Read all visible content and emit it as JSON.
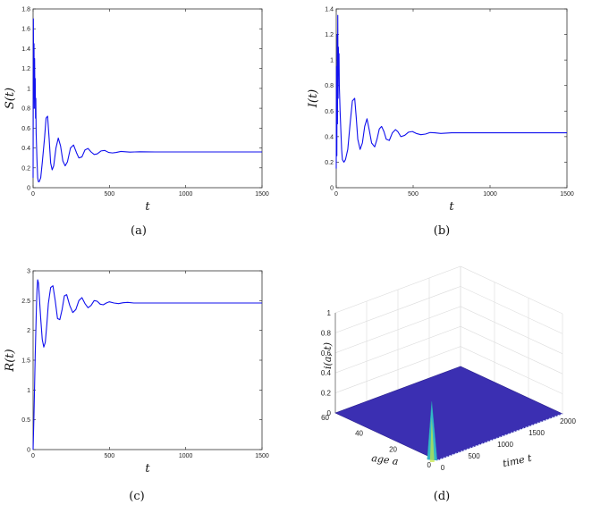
{
  "chart_data": [
    {
      "type": "line",
      "panel": "(a)",
      "caption": "(a)",
      "xlabel": "t",
      "ylabel": "S(t)",
      "xlim": [
        0,
        1500
      ],
      "ylim": [
        0,
        1.8
      ],
      "xticks": [
        "0",
        "500",
        "1000",
        "1500"
      ],
      "yticks": [
        "0",
        "0.2",
        "0.4",
        "0.6",
        "0.8",
        "1",
        "1.2",
        "1.4",
        "1.6",
        "1.8"
      ],
      "color": "#1010ee",
      "series": [
        {
          "name": "S(t)",
          "x": [
            0,
            2,
            4,
            6,
            8,
            10,
            12,
            14,
            16,
            18,
            20,
            25,
            30,
            35,
            40,
            50,
            60,
            75,
            85,
            95,
            105,
            115,
            125,
            135,
            150,
            165,
            180,
            195,
            210,
            225,
            245,
            265,
            285,
            300,
            320,
            340,
            360,
            380,
            400,
            420,
            445,
            470,
            495,
            520,
            545,
            575,
            605,
            635,
            665,
            700,
            800,
            1000,
            1500
          ],
          "y": [
            0.1,
            1.7,
            0.9,
            1.45,
            0.8,
            1.3,
            0.9,
            1.1,
            0.7,
            0.9,
            0.55,
            0.3,
            0.1,
            0.06,
            0.06,
            0.1,
            0.25,
            0.5,
            0.7,
            0.72,
            0.5,
            0.25,
            0.18,
            0.22,
            0.4,
            0.5,
            0.42,
            0.27,
            0.22,
            0.26,
            0.4,
            0.43,
            0.35,
            0.3,
            0.31,
            0.38,
            0.395,
            0.36,
            0.335,
            0.34,
            0.37,
            0.375,
            0.355,
            0.35,
            0.355,
            0.365,
            0.362,
            0.358,
            0.36,
            0.362,
            0.36,
            0.36,
            0.36
          ]
        }
      ]
    },
    {
      "type": "line",
      "panel": "(b)",
      "caption": "(b)",
      "xlabel": "t",
      "ylabel": "I(t)",
      "xlim": [
        0,
        1500
      ],
      "ylim": [
        0,
        1.4
      ],
      "xticks": [
        "0",
        "500",
        "1000",
        "1500"
      ],
      "yticks": [
        "0",
        "0.2",
        "0.4",
        "0.6",
        "0.8",
        "1",
        "1.2",
        "1.4"
      ],
      "color": "#1010ee",
      "series": [
        {
          "name": "I(t)",
          "x": [
            0,
            2,
            4,
            6,
            8,
            10,
            12,
            14,
            16,
            18,
            20,
            25,
            30,
            35,
            40,
            50,
            60,
            75,
            90,
            105,
            120,
            130,
            140,
            155,
            170,
            185,
            200,
            215,
            230,
            250,
            265,
            280,
            295,
            310,
            325,
            345,
            365,
            385,
            400,
            420,
            445,
            470,
            495,
            520,
            550,
            580,
            610,
            640,
            680,
            750,
            900,
            1200,
            1500
          ],
          "y": [
            0.15,
            0.95,
            0.25,
            1.2,
            0.5,
            1.35,
            0.7,
            1.1,
            0.9,
            1.05,
            0.8,
            0.6,
            0.45,
            0.3,
            0.22,
            0.2,
            0.22,
            0.3,
            0.5,
            0.68,
            0.7,
            0.55,
            0.38,
            0.3,
            0.35,
            0.48,
            0.54,
            0.45,
            0.35,
            0.32,
            0.38,
            0.46,
            0.48,
            0.44,
            0.38,
            0.37,
            0.43,
            0.455,
            0.44,
            0.4,
            0.41,
            0.435,
            0.44,
            0.425,
            0.415,
            0.42,
            0.432,
            0.43,
            0.425,
            0.43,
            0.43,
            0.43,
            0.43
          ]
        }
      ]
    },
    {
      "type": "line",
      "panel": "(c)",
      "caption": "(c)",
      "xlabel": "t",
      "ylabel": "R(t)",
      "xlim": [
        0,
        1500
      ],
      "ylim": [
        0,
        3
      ],
      "xticks": [
        "0",
        "500",
        "1000",
        "1500"
      ],
      "yticks": [
        "0",
        "0.5",
        "1",
        "1.5",
        "2",
        "2.5",
        "3"
      ],
      "color": "#1010ee",
      "series": [
        {
          "name": "R(t)",
          "x": [
            0,
            3,
            6,
            10,
            14,
            18,
            22,
            26,
            30,
            35,
            40,
            50,
            60,
            70,
            80,
            90,
            100,
            115,
            130,
            145,
            160,
            175,
            190,
            205,
            220,
            240,
            260,
            280,
            300,
            320,
            340,
            360,
            380,
            400,
            420,
            440,
            460,
            480,
            500,
            530,
            560,
            590,
            620,
            660,
            700,
            800,
            1000,
            1500
          ],
          "y": [
            0,
            0.3,
            0.6,
            1.1,
            1.6,
            2.0,
            2.4,
            2.7,
            2.85,
            2.8,
            2.6,
            2.2,
            1.85,
            1.72,
            1.8,
            2.1,
            2.45,
            2.72,
            2.75,
            2.5,
            2.2,
            2.18,
            2.35,
            2.58,
            2.6,
            2.42,
            2.3,
            2.35,
            2.5,
            2.55,
            2.45,
            2.38,
            2.42,
            2.5,
            2.49,
            2.44,
            2.43,
            2.46,
            2.48,
            2.46,
            2.45,
            2.465,
            2.47,
            2.46,
            2.46,
            2.46,
            2.46,
            2.46
          ]
        }
      ]
    },
    {
      "type": "surface",
      "panel": "(d)",
      "caption": "(d)",
      "zlabel": "i(a, t)",
      "xlabel": "time t",
      "ylabel": "age a",
      "zticks": [
        "0",
        "0.2",
        "0.4",
        "0.6",
        "0.8",
        "1"
      ],
      "tticks": [
        "0",
        "500",
        "1000",
        "1500",
        "2000"
      ],
      "aticks": [
        "0",
        "20",
        "40",
        "60"
      ],
      "zlim": [
        0,
        1
      ],
      "tlim": [
        0,
        2000
      ],
      "alim": [
        0,
        60
      ],
      "peak": {
        "a": 4,
        "t": 20,
        "value": 0.55
      },
      "plateau_value": 0.0
    }
  ]
}
